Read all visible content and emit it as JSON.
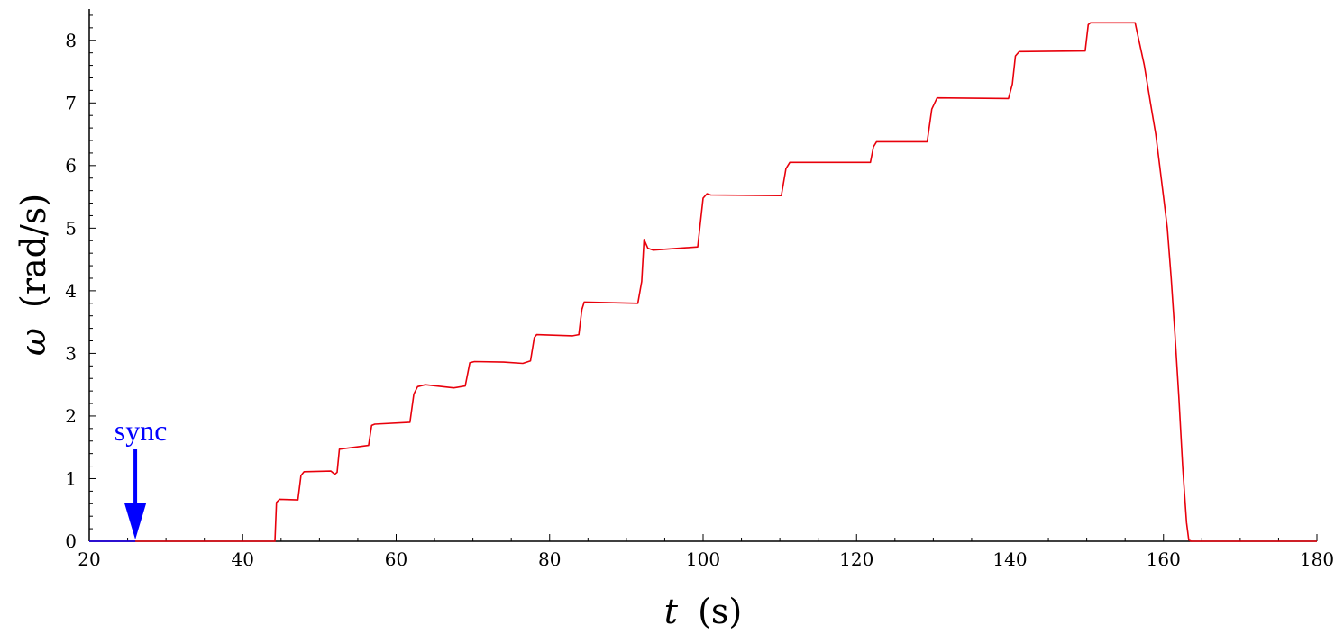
{
  "chart_data": {
    "type": "line",
    "xlabel": "t (s)",
    "ylabel": "ω (rad/s)",
    "xlabel_parts": {
      "var": "t",
      "unit": "(s)"
    },
    "ylabel_parts": {
      "var": "ω",
      "unit": "(rad/s)"
    },
    "xlim": [
      20,
      180
    ],
    "ylim": [
      0,
      8.5
    ],
    "xticks": [
      20,
      40,
      60,
      80,
      100,
      120,
      140,
      160,
      180
    ],
    "yticks": [
      0,
      1,
      2,
      3,
      4,
      5,
      6,
      7,
      8
    ],
    "xtick_labels": [
      "20",
      "40",
      "60",
      "80",
      "100",
      "120",
      "140",
      "160",
      "180"
    ],
    "ytick_labels": [
      "0",
      "1",
      "2",
      "3",
      "4",
      "5",
      "6",
      "7",
      "8"
    ],
    "grid": false,
    "series": [
      {
        "color": "#e8000b",
        "x": [
          20,
          44.2,
          44.4,
          44.8,
          47.2,
          47.6,
          48.0,
          51.5,
          52.0,
          52.3,
          52.6,
          56.4,
          56.8,
          57.2,
          61.8,
          62.3,
          62.8,
          63.8,
          67.5,
          69.0,
          69.6,
          70.2,
          74.0,
          76.5,
          77.5,
          78.0,
          78.3,
          83.0,
          83.8,
          84.2,
          84.5,
          91.5,
          92.0,
          92.3,
          92.8,
          93.5,
          99.3,
          100.0,
          100.5,
          101.0,
          110.2,
          110.8,
          111.3,
          121.8,
          122.2,
          122.6,
          129.2,
          129.8,
          130.5,
          139.8,
          140.3,
          140.7,
          141.2,
          149.8,
          150.2,
          150.5,
          156.3,
          156.8,
          157.5,
          158.3,
          159.0,
          159.5,
          160.0,
          160.5,
          161.0,
          161.5,
          162.0,
          162.5,
          163.0,
          163.3,
          163.6,
          180
        ],
        "y": [
          0,
          0,
          0.62,
          0.67,
          0.66,
          1.05,
          1.11,
          1.12,
          1.07,
          1.1,
          1.47,
          1.53,
          1.85,
          1.87,
          1.9,
          2.35,
          2.47,
          2.5,
          2.45,
          2.48,
          2.85,
          2.87,
          2.86,
          2.84,
          2.88,
          3.25,
          3.3,
          3.28,
          3.3,
          3.7,
          3.82,
          3.8,
          4.15,
          4.82,
          4.68,
          4.65,
          4.7,
          5.48,
          5.55,
          5.53,
          5.52,
          5.95,
          6.05,
          6.05,
          6.3,
          6.38,
          6.38,
          6.9,
          7.08,
          7.07,
          7.3,
          7.75,
          7.82,
          7.83,
          8.25,
          8.28,
          8.28,
          8.0,
          7.6,
          7.0,
          6.5,
          6.0,
          5.5,
          5.0,
          4.2,
          3.3,
          2.3,
          1.2,
          0.3,
          0.02,
          0,
          0
        ]
      },
      {
        "color": "#0000ff",
        "x": [
          20,
          26
        ],
        "y": [
          0,
          0
        ]
      }
    ],
    "annotations": [
      {
        "text": "sync",
        "x": 26,
        "y": 0,
        "color": "#0000ff",
        "arrow": "down"
      }
    ]
  }
}
